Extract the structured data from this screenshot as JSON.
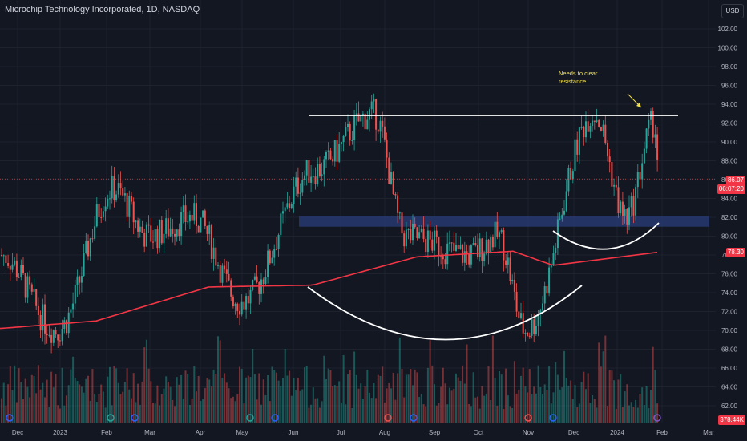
{
  "header": {
    "title": "Microchip Technology Incorporated, 1D, NASDAQ",
    "currency": "USD"
  },
  "price_axis": {
    "ticks": [
      "102.00",
      "100.00",
      "98.00",
      "96.00",
      "94.00",
      "92.00",
      "90.00",
      "88.00",
      "86.00",
      "84.00",
      "82.00",
      "80.00",
      "78.00",
      "76.00",
      "74.00",
      "72.00",
      "70.00",
      "68.00",
      "66.00",
      "64.00",
      "62.00"
    ]
  },
  "time_axis": {
    "ticks": [
      "Dec",
      "2023",
      "Feb",
      "Mar",
      "Apr",
      "May",
      "Jun",
      "Jul",
      "Aug",
      "Sep",
      "Oct",
      "Nov",
      "Dec",
      "2024",
      "Feb",
      "Mar"
    ]
  },
  "labels": {
    "last_price": "86.07",
    "countdown": "06:07:20",
    "ma_value": "78.30",
    "volume_value": "378.44K",
    "annotation": [
      "Needs to clear",
      "resistance"
    ]
  },
  "colors": {
    "up": "#26a69a",
    "down": "#ef5350",
    "ma": "#f23645",
    "zone": "#2a3d7a",
    "annotation": "#f5e24b",
    "background": "#131722"
  },
  "chart_data": {
    "type": "candlestick",
    "ylim": [
      60.5,
      104
    ],
    "key_points": [
      {
        "date": "Dec 2022",
        "close": 78
      },
      {
        "date": "Jan 2023",
        "close": 70
      },
      {
        "date": "Feb 2023",
        "close": 85
      },
      {
        "date": "Mar 2023",
        "close": 80
      },
      {
        "date": "Apr 2023",
        "close": 82
      },
      {
        "date": "May 2023",
        "close": 73
      },
      {
        "date": "Jun 2023",
        "close": 87
      },
      {
        "date": "Jul 2023",
        "close": 93
      },
      {
        "date": "Aug 2023",
        "close": 80
      },
      {
        "date": "Sep 2023",
        "close": 78
      },
      {
        "date": "Oct 2023",
        "close": 80
      },
      {
        "date": "Nov 2023",
        "close": 70
      },
      {
        "date": "Dec 2023",
        "close": 93
      },
      {
        "date": "Jan 2024",
        "close": 82
      },
      {
        "date": "Jan 2024",
        "close": 92
      },
      {
        "date": "Feb 2024",
        "close": 86.07
      }
    ],
    "moving_average": {
      "last": 78.3,
      "from": 70.2
    },
    "resistance_level": 92.8,
    "support_zone": [
      81.0,
      82.1
    ],
    "last_price": 86.07
  }
}
